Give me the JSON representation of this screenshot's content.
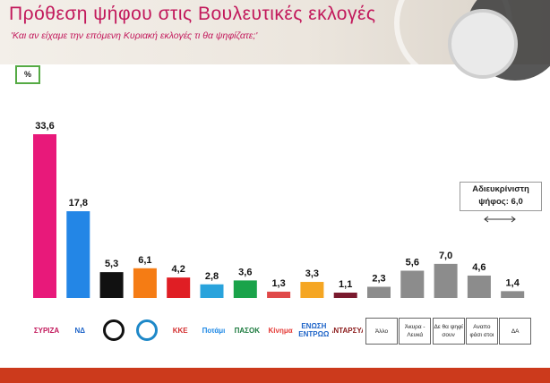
{
  "header": {
    "title": "Πρόθεση ψήφου στις Βουλευτικές εκλογές",
    "subtitle": "'Και αν είχαμε την επόμενη Κυριακή εκλογές τι θα ψηφίζατε;'"
  },
  "unit_label": "%",
  "note": {
    "line1": "Αδιευκρίνιστη",
    "line2": "ψήφος: 6,0"
  },
  "logos": [
    {
      "name": "syriza-logo",
      "text": "ΣΥΡΙΖΑ",
      "color": "#c2185b"
    },
    {
      "name": "nd-logo",
      "text": "ΝΔ",
      "color": "#1e64c8"
    },
    {
      "name": "chrysi-avgi-logo",
      "text": "",
      "color": "#111111"
    },
    {
      "name": "anel-logo",
      "text": "",
      "color": "#1e88c8"
    },
    {
      "name": "kke-logo",
      "text": "ΚΚΕ",
      "color": "#d32f2f"
    },
    {
      "name": "potami-logo",
      "text": "Ποτάμι",
      "color": "#1e88e5"
    },
    {
      "name": "pasok-logo",
      "text": "ΠΑΣΟΚ",
      "color": "#1b7a3e"
    },
    {
      "name": "kinima-logo",
      "text": "Κίνημα",
      "color": "#e53935"
    },
    {
      "name": "enosi-kentroon-logo",
      "text": "ΕΝΩΣΗ ΚΕΝΤΡΩΩΝ",
      "color": "#1e64c8"
    },
    {
      "name": "antarsya-logo",
      "text": "ΑΝΤΑΡΣΥΑ",
      "color": "#8b1a1a"
    },
    {
      "name": "allo-label",
      "text": "Άλλο",
      "color": "#222222",
      "boxed": true
    },
    {
      "name": "akyra-lefka-label",
      "text": "Άκυρα - Λευκά",
      "color": "#222222",
      "boxed": true
    },
    {
      "name": "de-tha-psifisoun-label",
      "text": "Δε θα ψηφί σουν",
      "color": "#222222",
      "boxed": true
    },
    {
      "name": "anapofasistoi-label",
      "text": "Αναπο φάσι στοι",
      "color": "#222222",
      "boxed": true
    },
    {
      "name": "da-label",
      "text": "ΔΑ",
      "color": "#222222",
      "boxed": true
    }
  ],
  "chart_data": {
    "type": "bar",
    "categories": [
      "ΣΥΡΙΖΑ",
      "ΝΔ",
      "Χρυσή Αυγή",
      "ΑΝΕΛ",
      "ΚΚΕ",
      "Ποτάμι",
      "ΠΑΣΟΚ",
      "Κίνημα",
      "Ένωση Κεντρώων",
      "ΑΝΤΑΡΣΥΑ",
      "Άλλο",
      "Άκυρα - Λευκά",
      "Δε θα ψηφίσουν",
      "Αναποφάσιστοι",
      "ΔΑ"
    ],
    "values": [
      33.6,
      17.8,
      5.3,
      6.1,
      4.2,
      2.8,
      3.6,
      1.3,
      3.3,
      1.1,
      2.3,
      5.6,
      7.0,
      4.6,
      1.4
    ],
    "labels": [
      "33,6",
      "17,8",
      "5,3",
      "6,1",
      "4,2",
      "2,8",
      "3,6",
      "1,3",
      "3,3",
      "1,1",
      "2,3",
      "5,6",
      "7,0",
      "4,6",
      "1,4"
    ],
    "colors": [
      "#e8197a",
      "#2386e6",
      "#111111",
      "#f57c14",
      "#e01e24",
      "#29a3dc",
      "#1aa34a",
      "#e04848",
      "#f5a623",
      "#7a1a2e",
      "#8c8c8c",
      "#8c8c8c",
      "#8c8c8c",
      "#8c8c8c",
      "#8c8c8c"
    ],
    "title": "Πρόθεση ψήφου στις Βουλευτικές εκλογές",
    "ylabel": "%",
    "ylim": [
      0,
      35
    ],
    "grid": false,
    "legend": "none"
  }
}
